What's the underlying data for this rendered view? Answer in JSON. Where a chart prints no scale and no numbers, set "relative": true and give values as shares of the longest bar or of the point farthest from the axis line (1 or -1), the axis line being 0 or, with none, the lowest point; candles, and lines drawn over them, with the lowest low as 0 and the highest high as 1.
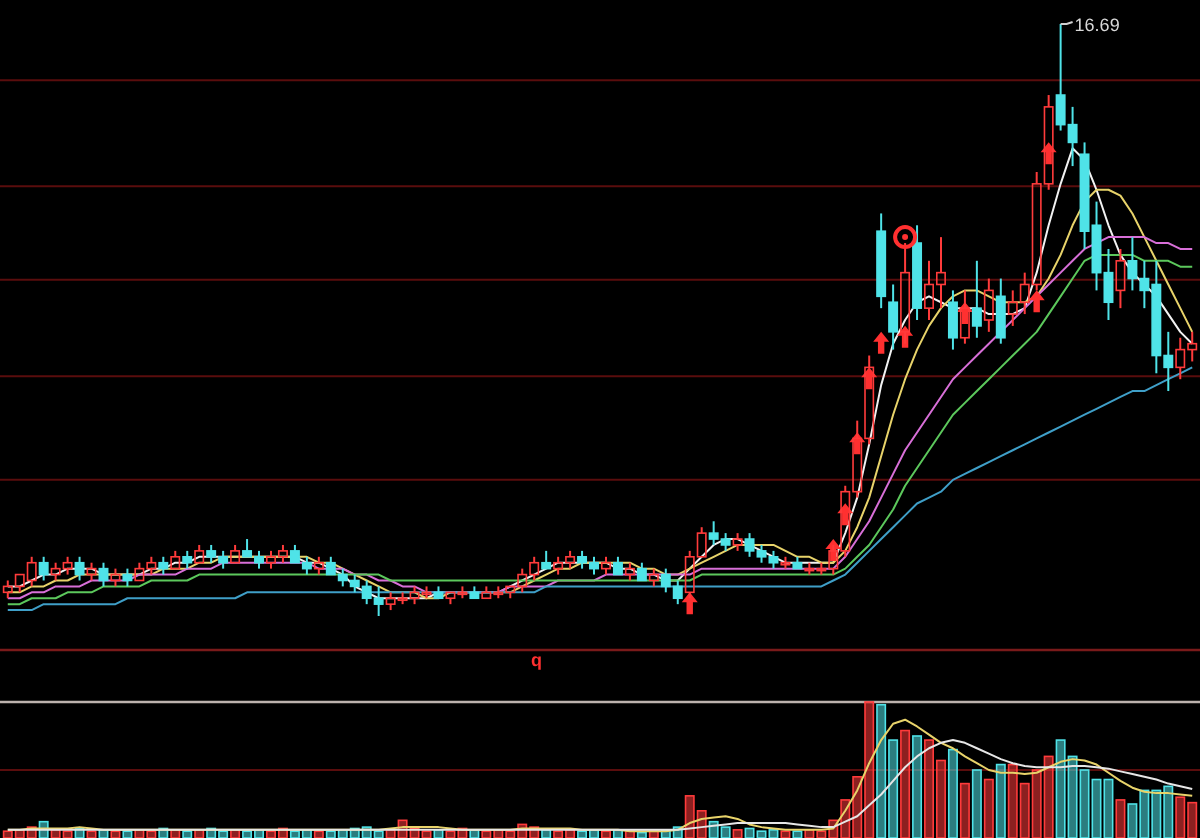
{
  "chart_data": [
    {
      "type": "candlestick",
      "relative": true,
      "categories": [
        null,
        null,
        null,
        null,
        null,
        null,
        null,
        null,
        null,
        null,
        null,
        null,
        null,
        null,
        null,
        null,
        null,
        null,
        null,
        null,
        null,
        null,
        null,
        null,
        null,
        null,
        null,
        null,
        null,
        null,
        null,
        null,
        null,
        null,
        null,
        null,
        null,
        null,
        null,
        null,
        null,
        null,
        null,
        null,
        null,
        null,
        null,
        null,
        null,
        null,
        null,
        null,
        null,
        null,
        null,
        null,
        null,
        null,
        null,
        null,
        null,
        null,
        null,
        null,
        null,
        null,
        null,
        null,
        null,
        null,
        null,
        null,
        null,
        null,
        null,
        null,
        null,
        null,
        null,
        null,
        null,
        null,
        null,
        null,
        null,
        null,
        null,
        null,
        null,
        null,
        null,
        null,
        null,
        null,
        null,
        null,
        null,
        null,
        null,
        null
      ],
      "ohlc": [
        [
          0.04,
          0.06,
          0.03,
          0.05
        ],
        [
          0.05,
          0.07,
          0.04,
          0.07
        ],
        [
          0.06,
          0.1,
          0.05,
          0.09
        ],
        [
          0.09,
          0.1,
          0.06,
          0.07
        ],
        [
          0.07,
          0.09,
          0.06,
          0.08
        ],
        [
          0.08,
          0.1,
          0.07,
          0.09
        ],
        [
          0.09,
          0.1,
          0.06,
          0.07
        ],
        [
          0.07,
          0.09,
          0.06,
          0.08
        ],
        [
          0.08,
          0.09,
          0.05,
          0.06
        ],
        [
          0.06,
          0.08,
          0.05,
          0.07
        ],
        [
          0.07,
          0.08,
          0.05,
          0.06
        ],
        [
          0.06,
          0.09,
          0.06,
          0.08
        ],
        [
          0.08,
          0.1,
          0.07,
          0.09
        ],
        [
          0.09,
          0.1,
          0.07,
          0.08
        ],
        [
          0.08,
          0.11,
          0.08,
          0.1
        ],
        [
          0.1,
          0.11,
          0.08,
          0.09
        ],
        [
          0.09,
          0.12,
          0.09,
          0.11
        ],
        [
          0.11,
          0.12,
          0.09,
          0.1
        ],
        [
          0.1,
          0.11,
          0.08,
          0.09
        ],
        [
          0.09,
          0.12,
          0.09,
          0.11
        ],
        [
          0.11,
          0.13,
          0.1,
          0.1
        ],
        [
          0.1,
          0.11,
          0.08,
          0.09
        ],
        [
          0.09,
          0.11,
          0.08,
          0.1
        ],
        [
          0.1,
          0.12,
          0.09,
          0.11
        ],
        [
          0.11,
          0.12,
          0.09,
          0.09
        ],
        [
          0.09,
          0.1,
          0.07,
          0.08
        ],
        [
          0.08,
          0.1,
          0.07,
          0.09
        ],
        [
          0.09,
          0.1,
          0.07,
          0.07
        ],
        [
          0.07,
          0.08,
          0.05,
          0.06
        ],
        [
          0.06,
          0.07,
          0.04,
          0.05
        ],
        [
          0.05,
          0.06,
          0.02,
          0.03
        ],
        [
          0.03,
          0.05,
          0.0,
          0.02
        ],
        [
          0.02,
          0.04,
          0.01,
          0.03
        ],
        [
          0.03,
          0.04,
          0.02,
          0.03
        ],
        [
          0.03,
          0.05,
          0.02,
          0.04
        ],
        [
          0.04,
          0.05,
          0.03,
          0.04
        ],
        [
          0.04,
          0.05,
          0.03,
          0.03
        ],
        [
          0.03,
          0.04,
          0.02,
          0.04
        ],
        [
          0.04,
          0.05,
          0.03,
          0.04
        ],
        [
          0.04,
          0.05,
          0.03,
          0.03
        ],
        [
          0.03,
          0.05,
          0.03,
          0.04
        ],
        [
          0.04,
          0.05,
          0.03,
          0.04
        ],
        [
          0.04,
          0.05,
          0.03,
          0.05
        ],
        [
          0.05,
          0.08,
          0.04,
          0.07
        ],
        [
          0.07,
          0.1,
          0.06,
          0.09
        ],
        [
          0.09,
          0.11,
          0.08,
          0.08
        ],
        [
          0.08,
          0.1,
          0.07,
          0.09
        ],
        [
          0.09,
          0.11,
          0.08,
          0.1
        ],
        [
          0.1,
          0.11,
          0.08,
          0.09
        ],
        [
          0.09,
          0.1,
          0.07,
          0.08
        ],
        [
          0.08,
          0.1,
          0.07,
          0.09
        ],
        [
          0.09,
          0.1,
          0.07,
          0.07
        ],
        [
          0.07,
          0.09,
          0.06,
          0.08
        ],
        [
          0.08,
          0.09,
          0.06,
          0.06
        ],
        [
          0.06,
          0.08,
          0.05,
          0.07
        ],
        [
          0.07,
          0.08,
          0.04,
          0.05
        ],
        [
          0.05,
          0.06,
          0.02,
          0.03
        ],
        [
          0.04,
          0.11,
          0.03,
          0.1
        ],
        [
          0.1,
          0.15,
          0.1,
          0.14
        ],
        [
          0.14,
          0.16,
          0.12,
          0.13
        ],
        [
          0.13,
          0.14,
          0.11,
          0.12
        ],
        [
          0.12,
          0.14,
          0.11,
          0.13
        ],
        [
          0.13,
          0.14,
          0.1,
          0.11
        ],
        [
          0.11,
          0.12,
          0.09,
          0.1
        ],
        [
          0.1,
          0.11,
          0.08,
          0.09
        ],
        [
          0.09,
          0.1,
          0.08,
          0.09
        ],
        [
          0.09,
          0.1,
          0.08,
          0.08
        ],
        [
          0.08,
          0.09,
          0.07,
          0.08
        ],
        [
          0.08,
          0.09,
          0.07,
          0.08
        ],
        [
          0.08,
          0.12,
          0.07,
          0.11
        ],
        [
          0.11,
          0.22,
          0.1,
          0.21
        ],
        [
          0.21,
          0.33,
          0.2,
          0.3
        ],
        [
          0.3,
          0.44,
          0.29,
          0.42
        ],
        [
          0.65,
          0.68,
          0.52,
          0.54
        ],
        [
          0.53,
          0.56,
          0.45,
          0.48
        ],
        [
          0.48,
          0.63,
          0.46,
          0.58
        ],
        [
          0.63,
          0.66,
          0.5,
          0.52
        ],
        [
          0.52,
          0.6,
          0.5,
          0.56
        ],
        [
          0.56,
          0.64,
          0.52,
          0.58
        ],
        [
          0.53,
          0.55,
          0.45,
          0.47
        ],
        [
          0.47,
          0.55,
          0.46,
          0.52
        ],
        [
          0.52,
          0.6,
          0.47,
          0.49
        ],
        [
          0.5,
          0.57,
          0.48,
          0.55
        ],
        [
          0.54,
          0.57,
          0.46,
          0.47
        ],
        [
          0.51,
          0.55,
          0.49,
          0.53
        ],
        [
          0.53,
          0.58,
          0.51,
          0.56
        ],
        [
          0.56,
          0.75,
          0.55,
          0.73
        ],
        [
          0.73,
          0.88,
          0.72,
          0.86
        ],
        [
          0.88,
          1.0,
          0.82,
          0.83
        ],
        [
          0.83,
          0.86,
          0.76,
          0.8
        ],
        [
          0.78,
          0.8,
          0.62,
          0.65
        ],
        [
          0.66,
          0.7,
          0.55,
          0.58
        ],
        [
          0.58,
          0.62,
          0.5,
          0.53
        ],
        [
          0.55,
          0.62,
          0.52,
          0.6
        ],
        [
          0.6,
          0.64,
          0.55,
          0.57
        ],
        [
          0.57,
          0.6,
          0.52,
          0.55
        ],
        [
          0.56,
          0.6,
          0.41,
          0.44
        ],
        [
          0.44,
          0.48,
          0.38,
          0.42
        ],
        [
          0.42,
          0.47,
          0.4,
          0.45
        ],
        [
          0.45,
          0.48,
          0.43,
          0.46
        ]
      ],
      "colors": [
        "#ff3b3b",
        "#ff3b3b",
        "#ff3b3b",
        "#4fe3e8",
        "#ff3b3b",
        "#ff3b3b",
        "#4fe3e8",
        "#ff3b3b",
        "#4fe3e8",
        "#ff3b3b",
        "#4fe3e8",
        "#ff3b3b",
        "#ff3b3b",
        "#4fe3e8",
        "#ff3b3b",
        "#4fe3e8",
        "#ff3b3b",
        "#4fe3e8",
        "#4fe3e8",
        "#ff3b3b",
        "#4fe3e8",
        "#4fe3e8",
        "#ff3b3b",
        "#ff3b3b",
        "#4fe3e8",
        "#4fe3e8",
        "#ff3b3b",
        "#4fe3e8",
        "#4fe3e8",
        "#4fe3e8",
        "#4fe3e8",
        "#4fe3e8",
        "#ff3b3b",
        "#ff3b3b",
        "#ff3b3b",
        "#ff3b3b",
        "#4fe3e8",
        "#ff3b3b",
        "#ff3b3b",
        "#4fe3e8",
        "#ff3b3b",
        "#ff3b3b",
        "#ff3b3b",
        "#ff3b3b",
        "#ff3b3b",
        "#4fe3e8",
        "#ff3b3b",
        "#ff3b3b",
        "#4fe3e8",
        "#4fe3e8",
        "#ff3b3b",
        "#4fe3e8",
        "#ff3b3b",
        "#4fe3e8",
        "#ff3b3b",
        "#4fe3e8",
        "#4fe3e8",
        "#ff3b3b",
        "#ff3b3b",
        "#4fe3e8",
        "#4fe3e8",
        "#ff3b3b",
        "#4fe3e8",
        "#4fe3e8",
        "#4fe3e8",
        "#ff3b3b",
        "#4fe3e8",
        "#ff3b3b",
        "#ff3b3b",
        "#ff3b3b",
        "#ff3b3b",
        "#ff3b3b",
        "#ff3b3b",
        "#4fe3e8",
        "#4fe3e8",
        "#ff3b3b",
        "#4fe3e8",
        "#ff3b3b",
        "#ff3b3b",
        "#4fe3e8",
        "#ff3b3b",
        "#4fe3e8",
        "#ff3b3b",
        "#4fe3e8",
        "#ff3b3b",
        "#ff3b3b",
        "#ff3b3b",
        "#ff3b3b",
        "#4fe3e8",
        "#4fe3e8",
        "#4fe3e8",
        "#4fe3e8",
        "#4fe3e8",
        "#ff3b3b",
        "#4fe3e8",
        "#4fe3e8",
        "#4fe3e8",
        "#4fe3e8",
        "#ff3b3b",
        "#ff3b3b"
      ],
      "series": [
        {
          "type": "line",
          "color": "#f2f2f2",
          "values": [
            0.05,
            0.05,
            0.06,
            0.07,
            0.07,
            0.08,
            0.08,
            0.08,
            0.07,
            0.07,
            0.07,
            0.07,
            0.08,
            0.08,
            0.09,
            0.09,
            0.1,
            0.1,
            0.1,
            0.1,
            0.1,
            0.1,
            0.1,
            0.1,
            0.1,
            0.09,
            0.09,
            0.08,
            0.07,
            0.05,
            0.04,
            0.03,
            0.03,
            0.03,
            0.03,
            0.03,
            0.04,
            0.04,
            0.04,
            0.04,
            0.04,
            0.04,
            0.05,
            0.06,
            0.07,
            0.08,
            0.09,
            0.09,
            0.09,
            0.09,
            0.09,
            0.08,
            0.08,
            0.07,
            0.07,
            0.06,
            0.06,
            0.08,
            0.1,
            0.12,
            0.13,
            0.13,
            0.12,
            0.11,
            0.1,
            0.09,
            0.09,
            0.09,
            0.09,
            0.09,
            0.14,
            0.2,
            0.29,
            0.39,
            0.46,
            0.5,
            0.53,
            0.54,
            0.53,
            0.52,
            0.52,
            0.52,
            0.51,
            0.51,
            0.51,
            0.52,
            0.58,
            0.66,
            0.73,
            0.79,
            0.77,
            0.72,
            0.66,
            0.61,
            0.58,
            0.56,
            0.54,
            0.51,
            0.48,
            0.46
          ]
        },
        {
          "type": "line",
          "color": "#e8d36a",
          "values": [
            0.04,
            0.04,
            0.05,
            0.05,
            0.06,
            0.06,
            0.07,
            0.07,
            0.07,
            0.07,
            0.07,
            0.07,
            0.07,
            0.08,
            0.08,
            0.08,
            0.09,
            0.09,
            0.1,
            0.1,
            0.1,
            0.1,
            0.1,
            0.1,
            0.1,
            0.1,
            0.09,
            0.09,
            0.08,
            0.07,
            0.06,
            0.05,
            0.04,
            0.04,
            0.04,
            0.03,
            0.03,
            0.04,
            0.04,
            0.04,
            0.04,
            0.04,
            0.04,
            0.05,
            0.06,
            0.07,
            0.08,
            0.08,
            0.09,
            0.09,
            0.09,
            0.09,
            0.09,
            0.08,
            0.08,
            0.07,
            0.07,
            0.08,
            0.09,
            0.1,
            0.11,
            0.12,
            0.12,
            0.12,
            0.12,
            0.11,
            0.1,
            0.1,
            0.09,
            0.09,
            0.11,
            0.15,
            0.2,
            0.27,
            0.34,
            0.4,
            0.45,
            0.49,
            0.52,
            0.54,
            0.55,
            0.55,
            0.54,
            0.53,
            0.53,
            0.53,
            0.54,
            0.57,
            0.61,
            0.66,
            0.7,
            0.72,
            0.72,
            0.71,
            0.68,
            0.64,
            0.6,
            0.56,
            0.52,
            0.48
          ]
        },
        {
          "type": "line",
          "color": "#d86fd8",
          "values": [
            0.03,
            0.03,
            0.04,
            0.04,
            0.05,
            0.05,
            0.05,
            0.06,
            0.06,
            0.06,
            0.06,
            0.07,
            0.07,
            0.07,
            0.07,
            0.08,
            0.08,
            0.08,
            0.09,
            0.09,
            0.09,
            0.09,
            0.09,
            0.09,
            0.09,
            0.09,
            0.08,
            0.08,
            0.08,
            0.07,
            0.07,
            0.06,
            0.06,
            0.05,
            0.05,
            0.04,
            0.04,
            0.04,
            0.04,
            0.04,
            0.04,
            0.04,
            0.05,
            0.05,
            0.05,
            0.05,
            0.06,
            0.06,
            0.06,
            0.06,
            0.07,
            0.07,
            0.07,
            0.07,
            0.07,
            0.07,
            0.07,
            0.07,
            0.08,
            0.08,
            0.08,
            0.08,
            0.08,
            0.08,
            0.08,
            0.08,
            0.08,
            0.08,
            0.08,
            0.08,
            0.1,
            0.13,
            0.16,
            0.2,
            0.24,
            0.28,
            0.31,
            0.34,
            0.37,
            0.4,
            0.42,
            0.44,
            0.46,
            0.48,
            0.5,
            0.52,
            0.54,
            0.56,
            0.58,
            0.6,
            0.62,
            0.63,
            0.64,
            0.64,
            0.64,
            0.64,
            0.63,
            0.63,
            0.62,
            0.62
          ]
        },
        {
          "type": "line",
          "color": "#5cc85c",
          "values": [
            0.02,
            0.02,
            0.03,
            0.03,
            0.03,
            0.04,
            0.04,
            0.04,
            0.05,
            0.05,
            0.05,
            0.05,
            0.06,
            0.06,
            0.06,
            0.06,
            0.07,
            0.07,
            0.07,
            0.07,
            0.07,
            0.07,
            0.07,
            0.07,
            0.07,
            0.07,
            0.07,
            0.07,
            0.07,
            0.07,
            0.07,
            0.07,
            0.06,
            0.06,
            0.06,
            0.06,
            0.06,
            0.06,
            0.06,
            0.06,
            0.06,
            0.06,
            0.06,
            0.06,
            0.06,
            0.06,
            0.06,
            0.06,
            0.06,
            0.06,
            0.06,
            0.06,
            0.06,
            0.06,
            0.06,
            0.06,
            0.06,
            0.06,
            0.07,
            0.07,
            0.07,
            0.07,
            0.07,
            0.07,
            0.07,
            0.07,
            0.07,
            0.07,
            0.07,
            0.07,
            0.08,
            0.1,
            0.12,
            0.15,
            0.18,
            0.22,
            0.25,
            0.28,
            0.31,
            0.34,
            0.36,
            0.38,
            0.4,
            0.42,
            0.44,
            0.46,
            0.48,
            0.51,
            0.54,
            0.57,
            0.6,
            0.61,
            0.61,
            0.61,
            0.61,
            0.6,
            0.6,
            0.6,
            0.59,
            0.59
          ]
        },
        {
          "type": "line",
          "color": "#3f9fc8",
          "values": [
            0.01,
            0.01,
            0.01,
            0.02,
            0.02,
            0.02,
            0.02,
            0.02,
            0.02,
            0.02,
            0.03,
            0.03,
            0.03,
            0.03,
            0.03,
            0.03,
            0.03,
            0.03,
            0.03,
            0.03,
            0.04,
            0.04,
            0.04,
            0.04,
            0.04,
            0.04,
            0.04,
            0.04,
            0.04,
            0.04,
            0.04,
            0.04,
            0.04,
            0.04,
            0.04,
            0.04,
            0.04,
            0.04,
            0.04,
            0.04,
            0.04,
            0.04,
            0.04,
            0.04,
            0.04,
            0.05,
            0.05,
            0.05,
            0.05,
            0.05,
            0.05,
            0.05,
            0.05,
            0.05,
            0.05,
            0.05,
            0.05,
            0.05,
            0.05,
            0.05,
            0.05,
            0.05,
            0.05,
            0.05,
            0.05,
            0.05,
            0.05,
            0.05,
            0.05,
            0.06,
            0.07,
            0.09,
            0.11,
            0.13,
            0.15,
            0.17,
            0.19,
            0.2,
            0.21,
            0.23,
            0.24,
            0.25,
            0.26,
            0.27,
            0.28,
            0.29,
            0.3,
            0.31,
            0.32,
            0.33,
            0.34,
            0.35,
            0.36,
            0.37,
            0.38,
            0.38,
            0.39,
            0.4,
            0.41,
            0.42
          ]
        },
        {
          "type": "scatter",
          "color": "#ff3030",
          "marker": "triangle",
          "values": [
            null,
            null,
            null,
            null,
            null,
            null,
            null,
            null,
            null,
            null,
            null,
            null,
            null,
            null,
            null,
            null,
            null,
            null,
            null,
            null,
            null,
            null,
            null,
            null,
            null,
            null,
            null,
            null,
            null,
            null,
            null,
            null,
            null,
            null,
            null,
            null,
            null,
            null,
            null,
            null,
            null,
            null,
            null,
            null,
            null,
            null,
            null,
            null,
            null,
            null,
            null,
            null,
            null,
            null,
            null,
            null,
            null,
            0.02,
            null,
            null,
            null,
            null,
            null,
            null,
            null,
            null,
            null,
            null,
            null,
            0.11,
            0.17,
            0.29,
            0.4,
            0.46,
            null,
            0.47,
            null,
            null,
            null,
            null,
            0.51,
            null,
            null,
            null,
            null,
            null,
            0.53,
            0.78,
            null,
            null,
            null,
            null,
            null,
            null,
            null,
            null,
            null,
            null,
            null,
            null
          ]
        }
      ],
      "ref_lines": [
        {
          "axis": "y",
          "value": 0.905,
          "color": "#5a0d0d"
        },
        {
          "axis": "y",
          "value": 0.726,
          "color": "#5a0d0d"
        },
        {
          "axis": "y",
          "value": 0.568,
          "color": "#5a0d0d"
        },
        {
          "axis": "y",
          "value": 0.405,
          "color": "#5a0d0d"
        },
        {
          "axis": "y",
          "value": 0.23,
          "color": "#5a0d0d"
        }
      ],
      "annotations": [
        "16.69",
        "q"
      ]
    },
    {
      "type": "bar",
      "relative": true,
      "ref_lines": [
        {
          "axis": "y",
          "value": 0.5,
          "color": "#5a0d0d"
        }
      ],
      "categories": [
        null,
        null,
        null,
        null,
        null,
        null,
        null,
        null,
        null,
        null,
        null,
        null,
        null,
        null,
        null,
        null,
        null,
        null,
        null,
        null,
        null,
        null,
        null,
        null,
        null,
        null,
        null,
        null,
        null,
        null,
        null,
        null,
        null,
        null,
        null,
        null,
        null,
        null,
        null,
        null,
        null,
        null,
        null,
        null,
        null,
        null,
        null,
        null,
        null,
        null,
        null,
        null,
        null,
        null,
        null,
        null,
        null,
        null,
        null,
        null,
        null,
        null,
        null,
        null,
        null,
        null,
        null,
        null,
        null,
        null,
        null,
        null,
        null,
        null,
        null,
        null,
        null,
        null,
        null,
        null,
        null,
        null,
        null,
        null,
        null,
        null,
        null,
        null,
        null,
        null,
        null,
        null,
        null,
        null,
        null,
        null,
        null,
        null,
        null,
        null
      ],
      "values": [
        0.05,
        0.06,
        0.08,
        0.12,
        0.06,
        0.05,
        0.07,
        0.05,
        0.06,
        0.05,
        0.05,
        0.06,
        0.05,
        0.07,
        0.06,
        0.05,
        0.06,
        0.07,
        0.05,
        0.06,
        0.05,
        0.06,
        0.05,
        0.07,
        0.05,
        0.06,
        0.05,
        0.05,
        0.06,
        0.07,
        0.08,
        0.05,
        0.06,
        0.13,
        0.07,
        0.05,
        0.06,
        0.05,
        0.07,
        0.06,
        0.05,
        0.06,
        0.05,
        0.1,
        0.08,
        0.06,
        0.05,
        0.06,
        0.05,
        0.06,
        0.05,
        0.06,
        0.05,
        0.04,
        0.05,
        0.06,
        0.08,
        0.31,
        0.2,
        0.12,
        0.08,
        0.06,
        0.07,
        0.05,
        0.06,
        0.05,
        0.05,
        0.06,
        0.05,
        0.13,
        0.28,
        0.45,
        1.0,
        0.98,
        0.72,
        0.79,
        0.75,
        0.72,
        0.57,
        0.65,
        0.4,
        0.5,
        0.43,
        0.54,
        0.54,
        0.4,
        0.5,
        0.6,
        0.72,
        0.6,
        0.5,
        0.43,
        0.43,
        0.28,
        0.25,
        0.35,
        0.35,
        0.38,
        0.3,
        0.26
      ],
      "colors": [
        "#ff3b3b",
        "#ff3b3b",
        "#ff3b3b",
        "#4fe3e8",
        "#ff3b3b",
        "#ff3b3b",
        "#4fe3e8",
        "#ff3b3b",
        "#4fe3e8",
        "#ff3b3b",
        "#4fe3e8",
        "#ff3b3b",
        "#ff3b3b",
        "#4fe3e8",
        "#ff3b3b",
        "#4fe3e8",
        "#ff3b3b",
        "#4fe3e8",
        "#4fe3e8",
        "#ff3b3b",
        "#4fe3e8",
        "#4fe3e8",
        "#ff3b3b",
        "#ff3b3b",
        "#4fe3e8",
        "#4fe3e8",
        "#ff3b3b",
        "#4fe3e8",
        "#4fe3e8",
        "#4fe3e8",
        "#4fe3e8",
        "#4fe3e8",
        "#ff3b3b",
        "#ff3b3b",
        "#ff3b3b",
        "#ff3b3b",
        "#4fe3e8",
        "#ff3b3b",
        "#ff3b3b",
        "#4fe3e8",
        "#ff3b3b",
        "#ff3b3b",
        "#ff3b3b",
        "#ff3b3b",
        "#ff3b3b",
        "#4fe3e8",
        "#ff3b3b",
        "#ff3b3b",
        "#4fe3e8",
        "#4fe3e8",
        "#ff3b3b",
        "#4fe3e8",
        "#ff3b3b",
        "#4fe3e8",
        "#ff3b3b",
        "#4fe3e8",
        "#4fe3e8",
        "#ff3b3b",
        "#ff3b3b",
        "#4fe3e8",
        "#4fe3e8",
        "#ff3b3b",
        "#4fe3e8",
        "#4fe3e8",
        "#4fe3e8",
        "#ff3b3b",
        "#4fe3e8",
        "#ff3b3b",
        "#ff3b3b",
        "#ff3b3b",
        "#ff3b3b",
        "#ff3b3b",
        "#ff3b3b",
        "#4fe3e8",
        "#4fe3e8",
        "#ff3b3b",
        "#4fe3e8",
        "#ff3b3b",
        "#ff3b3b",
        "#4fe3e8",
        "#ff3b3b",
        "#4fe3e8",
        "#ff3b3b",
        "#4fe3e8",
        "#ff3b3b",
        "#ff3b3b",
        "#ff3b3b",
        "#ff3b3b",
        "#4fe3e8",
        "#4fe3e8",
        "#4fe3e8",
        "#4fe3e8",
        "#4fe3e8",
        "#ff3b3b",
        "#4fe3e8",
        "#4fe3e8",
        "#4fe3e8",
        "#4fe3e8",
        "#ff3b3b",
        "#ff3b3b"
      ],
      "series": [
        {
          "type": "line",
          "color": "#e8d36a",
          "values": [
            0.06,
            0.06,
            0.07,
            0.07,
            0.07,
            0.07,
            0.08,
            0.07,
            0.06,
            0.06,
            0.06,
            0.06,
            0.06,
            0.06,
            0.06,
            0.06,
            0.06,
            0.06,
            0.06,
            0.06,
            0.06,
            0.06,
            0.06,
            0.06,
            0.06,
            0.06,
            0.06,
            0.06,
            0.06,
            0.06,
            0.06,
            0.06,
            0.07,
            0.08,
            0.08,
            0.08,
            0.08,
            0.07,
            0.06,
            0.06,
            0.06,
            0.06,
            0.06,
            0.07,
            0.07,
            0.07,
            0.07,
            0.07,
            0.06,
            0.06,
            0.06,
            0.06,
            0.05,
            0.05,
            0.05,
            0.05,
            0.06,
            0.11,
            0.14,
            0.15,
            0.16,
            0.14,
            0.1,
            0.08,
            0.07,
            0.06,
            0.06,
            0.06,
            0.06,
            0.07,
            0.2,
            0.35,
            0.55,
            0.72,
            0.84,
            0.87,
            0.82,
            0.76,
            0.7,
            0.66,
            0.6,
            0.55,
            0.5,
            0.48,
            0.48,
            0.47,
            0.48,
            0.52,
            0.56,
            0.58,
            0.57,
            0.54,
            0.48,
            0.42,
            0.37,
            0.34,
            0.33,
            0.33,
            0.32,
            0.31
          ]
        },
        {
          "type": "line",
          "color": "#e6e6e6",
          "values": [
            0.06,
            0.06,
            0.06,
            0.06,
            0.06,
            0.06,
            0.06,
            0.06,
            0.06,
            0.06,
            0.06,
            0.06,
            0.06,
            0.06,
            0.06,
            0.06,
            0.06,
            0.06,
            0.06,
            0.06,
            0.06,
            0.06,
            0.06,
            0.06,
            0.06,
            0.06,
            0.06,
            0.06,
            0.06,
            0.06,
            0.06,
            0.06,
            0.06,
            0.06,
            0.06,
            0.06,
            0.06,
            0.06,
            0.06,
            0.06,
            0.06,
            0.06,
            0.06,
            0.06,
            0.06,
            0.06,
            0.06,
            0.06,
            0.06,
            0.06,
            0.06,
            0.06,
            0.06,
            0.06,
            0.06,
            0.06,
            0.06,
            0.07,
            0.08,
            0.09,
            0.1,
            0.11,
            0.11,
            0.11,
            0.11,
            0.11,
            0.1,
            0.09,
            0.08,
            0.08,
            0.12,
            0.16,
            0.24,
            0.32,
            0.42,
            0.52,
            0.6,
            0.66,
            0.7,
            0.72,
            0.7,
            0.66,
            0.62,
            0.58,
            0.55,
            0.53,
            0.52,
            0.52,
            0.52,
            0.53,
            0.53,
            0.52,
            0.51,
            0.49,
            0.47,
            0.45,
            0.43,
            0.4,
            0.38,
            0.36
          ]
        }
      ]
    }
  ]
}
